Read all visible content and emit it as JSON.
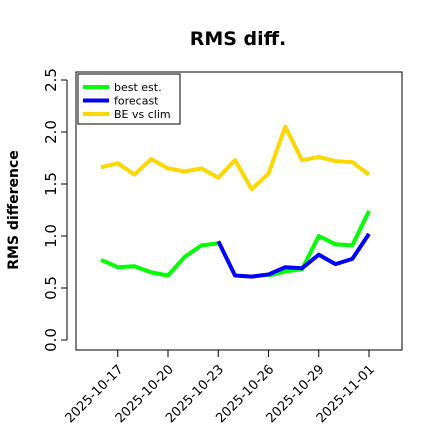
{
  "chart_data": {
    "type": "line",
    "title": "RMS diff.",
    "xlabel": "",
    "ylabel": "RMS difference",
    "ylim": [
      0,
      2.5
    ],
    "yticks": [
      0.0,
      0.5,
      1.0,
      1.5,
      2.0,
      2.5
    ],
    "ytick_labels": [
      "0.0",
      "0.5",
      "1.0",
      "1.5",
      "2.0",
      "2.5"
    ],
    "xtick_dates": [
      "2025-10-17",
      "2025-10-20",
      "2025-10-23",
      "2025-10-26",
      "2025-10-29",
      "2025-11-01"
    ],
    "xtick_labels": [
      "2025-10-17",
      "2025-10-20",
      "2025-10-23",
      "2025-10-26",
      "2025-10-29",
      "2025-11-01"
    ],
    "highlighted_xtick": "2025-10-23",
    "highlight_color": "#228B22",
    "grid": false,
    "legend_position": "top-left",
    "series": [
      {
        "name": "best est.",
        "color": "#00ff00",
        "points": [
          {
            "x": "2025-10-16",
            "y": 0.77
          },
          {
            "x": "2025-10-17",
            "y": 0.7
          },
          {
            "x": "2025-10-18",
            "y": 0.71
          },
          {
            "x": "2025-10-19",
            "y": 0.65
          },
          {
            "x": "2025-10-20",
            "y": 0.62
          },
          {
            "x": "2025-10-21",
            "y": 0.8
          },
          {
            "x": "2025-10-22",
            "y": 0.91
          },
          {
            "x": "2025-10-23",
            "y": 0.93
          }
        ]
      },
      {
        "name": "",
        "color": "#00ff00",
        "points": [
          {
            "x": "2025-10-26",
            "y": 0.62
          },
          {
            "x": "2025-10-27",
            "y": 0.66
          },
          {
            "x": "2025-10-28",
            "y": 0.68
          },
          {
            "x": "2025-10-29",
            "y": 1.0
          },
          {
            "x": "2025-10-30",
            "y": 0.92
          },
          {
            "x": "2025-10-31",
            "y": 0.91
          },
          {
            "x": "2025-11-01",
            "y": 1.24
          }
        ]
      },
      {
        "name": "forecast",
        "color": "#0000ff",
        "points": [
          {
            "x": "2025-10-23",
            "y": 0.95
          },
          {
            "x": "2025-10-24",
            "y": 0.62
          },
          {
            "x": "2025-10-25",
            "y": 0.61
          },
          {
            "x": "2025-10-26",
            "y": 0.63
          },
          {
            "x": "2025-10-27",
            "y": 0.7
          },
          {
            "x": "2025-10-28",
            "y": 0.69
          },
          {
            "x": "2025-10-29",
            "y": 0.82
          },
          {
            "x": "2025-10-30",
            "y": 0.73
          },
          {
            "x": "2025-10-31",
            "y": 0.78
          },
          {
            "x": "2025-11-01",
            "y": 1.02
          }
        ]
      },
      {
        "name": "BE vs clim",
        "color": "#ffd700",
        "points": [
          {
            "x": "2025-10-16",
            "y": 1.66
          },
          {
            "x": "2025-10-17",
            "y": 1.7
          },
          {
            "x": "2025-10-18",
            "y": 1.59
          },
          {
            "x": "2025-10-19",
            "y": 1.74
          },
          {
            "x": "2025-10-20",
            "y": 1.65
          },
          {
            "x": "2025-10-21",
            "y": 1.62
          },
          {
            "x": "2025-10-22",
            "y": 1.65
          },
          {
            "x": "2025-10-23",
            "y": 1.56
          },
          {
            "x": "2025-10-24",
            "y": 1.73
          },
          {
            "x": "2025-10-25",
            "y": 1.45
          },
          {
            "x": "2025-10-26",
            "y": 1.6
          },
          {
            "x": "2025-10-27",
            "y": 2.05
          },
          {
            "x": "2025-10-28",
            "y": 1.73
          },
          {
            "x": "2025-10-29",
            "y": 1.76
          },
          {
            "x": "2025-10-30",
            "y": 1.72
          },
          {
            "x": "2025-10-31",
            "y": 1.71
          },
          {
            "x": "2025-11-01",
            "y": 1.59
          }
        ]
      }
    ]
  }
}
